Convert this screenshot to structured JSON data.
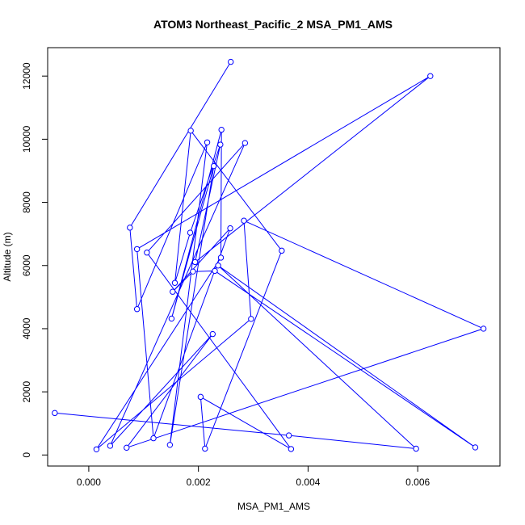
{
  "chart_data": {
    "type": "line",
    "title": "ATOM3 Northeast_Pacific_2 MSA_PM1_AMS",
    "xlabel": "MSA_PM1_AMS",
    "ylabel": "Altitude (m)",
    "xlim": [
      -0.00075,
      0.0075
    ],
    "ylim": [
      -350,
      12900
    ],
    "x_ticks": [
      0.0,
      0.002,
      0.004,
      0.006
    ],
    "x_tick_labels": [
      "0.000",
      "0.002",
      "0.004",
      "0.006"
    ],
    "y_ticks": [
      0,
      2000,
      4000,
      6000,
      8000,
      10000,
      12000
    ],
    "y_tick_labels": [
      "0",
      "2000",
      "4000",
      "6000",
      "8000",
      "10000",
      "12000"
    ],
    "grid": false,
    "markers": "open-circle",
    "series": [
      {
        "color": "#0000ff",
        "points": [
          {
            "x": 0.00259,
            "y": 12450
          },
          {
            "x": 0.00075,
            "y": 7200
          },
          {
            "x": 0.00088,
            "y": 4620
          },
          {
            "x": 0.00216,
            "y": 9900
          },
          {
            "x": 0.00148,
            "y": 320
          },
          {
            "x": 0.00228,
            "y": 9150
          },
          {
            "x": 0.00151,
            "y": 4320
          },
          {
            "x": 0.00242,
            "y": 10300
          },
          {
            "x": 0.00241,
            "y": 6250
          },
          {
            "x": 0.00014,
            "y": 180
          },
          {
            "x": 0.00296,
            "y": 4310
          },
          {
            "x": 0.00283,
            "y": 7420
          },
          {
            "x": 0.0072,
            "y": 4000
          },
          {
            "x": 0.00069,
            "y": 230
          },
          {
            "x": 0.00226,
            "y": 3830
          },
          {
            "x": 0.00039,
            "y": 290
          },
          {
            "x": 0.00285,
            "y": 9880
          },
          {
            "x": 0.00106,
            "y": 6410
          },
          {
            "x": 0.00369,
            "y": 190
          },
          {
            "x": 0.00204,
            "y": 1840
          },
          {
            "x": 0.00212,
            "y": 200
          },
          {
            "x": 0.00352,
            "y": 6470
          },
          {
            "x": 0.00186,
            "y": 10270
          },
          {
            "x": 0.00157,
            "y": 5450
          },
          {
            "x": 0.00185,
            "y": 7040
          },
          {
            "x": 0.0024,
            "y": 9830
          },
          {
            "x": 0.00194,
            "y": 6110
          },
          {
            "x": 0.00623,
            "y": 12000
          },
          {
            "x": 0.00088,
            "y": 6520
          },
          {
            "x": 0.00118,
            "y": 530
          },
          {
            "x": 0.00258,
            "y": 7180
          },
          {
            "x": 0.00153,
            "y": 5170
          },
          {
            "x": 0.0019,
            "y": 5810
          },
          {
            "x": 0.0023,
            "y": 5830
          },
          {
            "x": 0.00705,
            "y": 240
          },
          {
            "x": 0.00236,
            "y": 6000
          },
          {
            "x": 0.00597,
            "y": 200
          },
          {
            "x": 0.00365,
            "y": 620
          },
          {
            "x": -0.00062,
            "y": 1330
          }
        ]
      }
    ]
  }
}
